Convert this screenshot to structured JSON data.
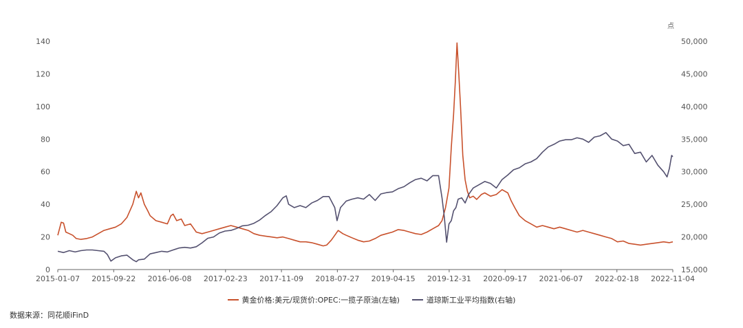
{
  "chart_data": {
    "type": "line",
    "unit_right": "点",
    "left_axis": {
      "ylim": [
        0,
        140
      ],
      "ticks": [
        "0",
        "20",
        "40",
        "60",
        "80",
        "100",
        "120",
        "140"
      ]
    },
    "right_axis": {
      "ylim": [
        15000,
        50000
      ],
      "ticks": [
        "15,000",
        "20,000",
        "25,000",
        "30,000",
        "35,000",
        "40,000",
        "45,000",
        "50,000"
      ]
    },
    "x_ticks": [
      "2015-01-07",
      "2015-09-22",
      "2016-06-08",
      "2017-02-23",
      "2017-11-09",
      "2018-07-27",
      "2019-04-15",
      "2019-12-31",
      "2020-09-17",
      "2021-06-07",
      "2022-02-18",
      "2022-11-04"
    ],
    "grid": false,
    "legend_position": "bottom",
    "series": [
      {
        "name": "黄金价格:美元/现货价:OPEC:一揽子原油(左轴)",
        "axis": "left",
        "color": "#c8502b",
        "values": [
          [
            0,
            21
          ],
          [
            0.15,
            25
          ],
          [
            0.3,
            29
          ],
          [
            0.5,
            28.5
          ],
          [
            0.7,
            23
          ],
          [
            1.0,
            22
          ],
          [
            1.3,
            21
          ],
          [
            1.6,
            19
          ],
          [
            2.0,
            18.5
          ],
          [
            2.5,
            19
          ],
          [
            3.0,
            20
          ],
          [
            3.5,
            22
          ],
          [
            4.0,
            24
          ],
          [
            4.5,
            25
          ],
          [
            5.0,
            26
          ],
          [
            5.5,
            28
          ],
          [
            6.0,
            32
          ],
          [
            6.5,
            40
          ],
          [
            6.8,
            48
          ],
          [
            7.0,
            44
          ],
          [
            7.2,
            47
          ],
          [
            7.5,
            40
          ],
          [
            7.8,
            36
          ],
          [
            8.0,
            33
          ],
          [
            8.5,
            30
          ],
          [
            9.0,
            29
          ],
          [
            9.5,
            28
          ],
          [
            9.8,
            33
          ],
          [
            10.0,
            34
          ],
          [
            10.3,
            30
          ],
          [
            10.7,
            31
          ],
          [
            11.0,
            27
          ],
          [
            11.5,
            28
          ],
          [
            11.8,
            25
          ],
          [
            12.0,
            23
          ],
          [
            12.5,
            22
          ],
          [
            13.0,
            23
          ],
          [
            13.5,
            24
          ],
          [
            14.0,
            25
          ],
          [
            14.5,
            26
          ],
          [
            15.0,
            27
          ],
          [
            15.5,
            26
          ],
          [
            16.0,
            25
          ],
          [
            16.5,
            24
          ],
          [
            17.0,
            22
          ],
          [
            17.5,
            21
          ],
          [
            18.0,
            20.5
          ],
          [
            18.5,
            20
          ],
          [
            19.0,
            19.5
          ],
          [
            19.5,
            20
          ],
          [
            20.0,
            19
          ],
          [
            20.5,
            18
          ],
          [
            21.0,
            17
          ],
          [
            21.5,
            17
          ],
          [
            22.0,
            16.5
          ],
          [
            22.5,
            15.5
          ],
          [
            23.0,
            14.5
          ],
          [
            23.3,
            15
          ],
          [
            23.7,
            18
          ],
          [
            24.0,
            21
          ],
          [
            24.3,
            24
          ],
          [
            24.7,
            22
          ],
          [
            25.0,
            21
          ],
          [
            25.5,
            19.5
          ],
          [
            26.0,
            18
          ],
          [
            26.5,
            17
          ],
          [
            27.0,
            17.5
          ],
          [
            27.5,
            19
          ],
          [
            28.0,
            21
          ],
          [
            28.5,
            22
          ],
          [
            29.0,
            23
          ],
          [
            29.5,
            24.5
          ],
          [
            30.0,
            24
          ],
          [
            30.5,
            23
          ],
          [
            31.0,
            22
          ],
          [
            31.5,
            21.5
          ],
          [
            32.0,
            23
          ],
          [
            32.5,
            25
          ],
          [
            33.0,
            27
          ],
          [
            33.3,
            30
          ],
          [
            33.6,
            38
          ],
          [
            33.9,
            50
          ],
          [
            34.1,
            75
          ],
          [
            34.3,
            95
          ],
          [
            34.45,
            115
          ],
          [
            34.6,
            139
          ],
          [
            34.75,
            120
          ],
          [
            34.9,
            100
          ],
          [
            35.1,
            70
          ],
          [
            35.3,
            55
          ],
          [
            35.5,
            48
          ],
          [
            35.7,
            44
          ],
          [
            36.0,
            45
          ],
          [
            36.3,
            43
          ],
          [
            36.7,
            46
          ],
          [
            37.0,
            47
          ],
          [
            37.5,
            45
          ],
          [
            38.0,
            46
          ],
          [
            38.5,
            49
          ],
          [
            39.0,
            47
          ],
          [
            39.3,
            42
          ],
          [
            39.6,
            38
          ],
          [
            40.0,
            33
          ],
          [
            40.5,
            30
          ],
          [
            41.0,
            28
          ],
          [
            41.5,
            26
          ],
          [
            42.0,
            27
          ],
          [
            42.5,
            26
          ],
          [
            43.0,
            25
          ],
          [
            43.5,
            26
          ],
          [
            44.0,
            25
          ],
          [
            44.5,
            24
          ],
          [
            45.0,
            23
          ],
          [
            45.5,
            24
          ],
          [
            46.0,
            23
          ],
          [
            46.5,
            22
          ],
          [
            47.0,
            21
          ],
          [
            47.5,
            20
          ],
          [
            48.0,
            19
          ],
          [
            48.5,
            17
          ],
          [
            49.0,
            17.5
          ],
          [
            49.5,
            16
          ],
          [
            50.0,
            15.5
          ],
          [
            50.5,
            15
          ],
          [
            51.0,
            15.5
          ],
          [
            51.5,
            16
          ],
          [
            52.0,
            16.5
          ],
          [
            52.5,
            17
          ],
          [
            53.0,
            16.5
          ],
          [
            53.3,
            17
          ]
        ]
      },
      {
        "name": "道琼斯工业平均指数(右轴)",
        "axis": "right",
        "color": "#53506f",
        "values": [
          [
            0,
            17800
          ],
          [
            0.5,
            17600
          ],
          [
            1.0,
            17900
          ],
          [
            1.5,
            17700
          ],
          [
            2.0,
            17900
          ],
          [
            2.5,
            18000
          ],
          [
            3.0,
            18000
          ],
          [
            3.5,
            17900
          ],
          [
            4.0,
            17800
          ],
          [
            4.3,
            17300
          ],
          [
            4.6,
            16300
          ],
          [
            5.0,
            16800
          ],
          [
            5.5,
            17100
          ],
          [
            6.0,
            17200
          ],
          [
            6.5,
            16500
          ],
          [
            6.8,
            16200
          ],
          [
            7.0,
            16500
          ],
          [
            7.5,
            16600
          ],
          [
            8.0,
            17400
          ],
          [
            8.5,
            17600
          ],
          [
            9.0,
            17800
          ],
          [
            9.5,
            17700
          ],
          [
            10.0,
            18000
          ],
          [
            10.5,
            18300
          ],
          [
            11.0,
            18400
          ],
          [
            11.5,
            18300
          ],
          [
            12.0,
            18500
          ],
          [
            12.5,
            19100
          ],
          [
            13.0,
            19800
          ],
          [
            13.5,
            20000
          ],
          [
            14.0,
            20600
          ],
          [
            14.5,
            20900
          ],
          [
            15.0,
            21000
          ],
          [
            15.5,
            21300
          ],
          [
            16.0,
            21700
          ],
          [
            16.5,
            21800
          ],
          [
            17.0,
            22100
          ],
          [
            17.5,
            22600
          ],
          [
            18.0,
            23300
          ],
          [
            18.5,
            23900
          ],
          [
            19.0,
            24800
          ],
          [
            19.5,
            26000
          ],
          [
            19.8,
            26300
          ],
          [
            20.0,
            25000
          ],
          [
            20.5,
            24500
          ],
          [
            21.0,
            24800
          ],
          [
            21.5,
            24500
          ],
          [
            22.0,
            25200
          ],
          [
            22.5,
            25600
          ],
          [
            23.0,
            26200
          ],
          [
            23.5,
            26200
          ],
          [
            24.0,
            24500
          ],
          [
            24.2,
            22500
          ],
          [
            24.5,
            24500
          ],
          [
            25.0,
            25500
          ],
          [
            25.5,
            25800
          ],
          [
            26.0,
            26000
          ],
          [
            26.5,
            25800
          ],
          [
            27.0,
            26500
          ],
          [
            27.5,
            25600
          ],
          [
            28.0,
            26600
          ],
          [
            28.5,
            26800
          ],
          [
            29.0,
            26900
          ],
          [
            29.5,
            27400
          ],
          [
            30.0,
            27700
          ],
          [
            30.5,
            28300
          ],
          [
            31.0,
            28800
          ],
          [
            31.5,
            29000
          ],
          [
            32.0,
            28600
          ],
          [
            32.5,
            29400
          ],
          [
            33.0,
            29400
          ],
          [
            33.3,
            26000
          ],
          [
            33.5,
            23000
          ],
          [
            33.7,
            19200
          ],
          [
            33.9,
            22000
          ],
          [
            34.1,
            22500
          ],
          [
            34.3,
            24000
          ],
          [
            34.5,
            24500
          ],
          [
            34.7,
            25800
          ],
          [
            35.0,
            26000
          ],
          [
            35.3,
            25200
          ],
          [
            35.6,
            26500
          ],
          [
            36.0,
            27500
          ],
          [
            36.5,
            28000
          ],
          [
            37.0,
            28500
          ],
          [
            37.5,
            28200
          ],
          [
            38.0,
            27500
          ],
          [
            38.5,
            28800
          ],
          [
            39.0,
            29500
          ],
          [
            39.5,
            30300
          ],
          [
            40.0,
            30600
          ],
          [
            40.5,
            31200
          ],
          [
            41.0,
            31500
          ],
          [
            41.5,
            32000
          ],
          [
            42.0,
            33000
          ],
          [
            42.5,
            33800
          ],
          [
            43.0,
            34200
          ],
          [
            43.5,
            34700
          ],
          [
            44.0,
            34900
          ],
          [
            44.5,
            34900
          ],
          [
            45.0,
            35200
          ],
          [
            45.5,
            35000
          ],
          [
            46.0,
            34500
          ],
          [
            46.5,
            35300
          ],
          [
            47.0,
            35500
          ],
          [
            47.5,
            36000
          ],
          [
            48.0,
            35000
          ],
          [
            48.5,
            34700
          ],
          [
            49.0,
            34000
          ],
          [
            49.5,
            34200
          ],
          [
            50.0,
            32800
          ],
          [
            50.5,
            33000
          ],
          [
            51.0,
            31500
          ],
          [
            51.5,
            32500
          ],
          [
            52.0,
            31000
          ],
          [
            52.5,
            30000
          ],
          [
            52.8,
            29200
          ],
          [
            53.0,
            30500
          ],
          [
            53.2,
            32500
          ],
          [
            53.3,
            32300
          ]
        ]
      }
    ]
  },
  "source_text": "数据来源：同花顺iFinD"
}
